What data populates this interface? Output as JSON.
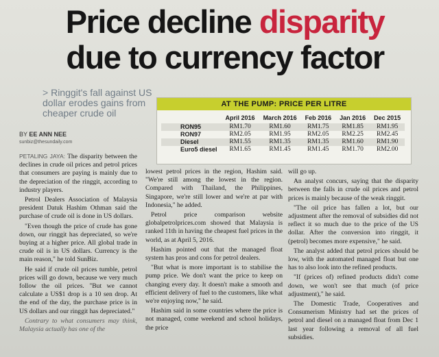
{
  "headline": {
    "part1": "Price decline ",
    "accent": "disparity",
    "part2": "due to currency factor"
  },
  "colors": {
    "accent": "#c8243d",
    "table_header": "#c7cf2e",
    "subdeck": "#6f7b86"
  },
  "subdeck": {
    "marker": ">",
    "text": "Ringgit's fall against US dollar erodes gains from cheaper crude oil"
  },
  "byline": {
    "prefix": "BY ",
    "name": "EE ANN NEE",
    "email": "sunbiz@thesundaily.com"
  },
  "table": {
    "title": "AT THE PUMP: PRICE PER LITRE",
    "columns": [
      "April 2016",
      "March 2016",
      "Feb 2016",
      "Jan 2016",
      "Dec 2015"
    ],
    "rows": [
      {
        "fuel": "RON95",
        "values": [
          "RM1.70",
          "RM1.60",
          "RM1.75",
          "RM1.85",
          "RM1.95"
        ]
      },
      {
        "fuel": "RON97",
        "values": [
          "RM2.05",
          "RM1.95",
          "RM2.05",
          "RM2.25",
          "RM2.45"
        ]
      },
      {
        "fuel": "Diesel",
        "values": [
          "RM1.55",
          "RM1.35",
          "RM1.35",
          "RM1.60",
          "RM1.90"
        ]
      },
      {
        "fuel": "Euro5 diesel",
        "values": [
          "RM1.65",
          "RM1.45",
          "RM1.45",
          "RM1.70",
          "RM2.00"
        ]
      }
    ]
  },
  "article": {
    "col1": {
      "dateline": "PETALING JAYA:",
      "p1": " The disparity between the declines in crude oil prices and petrol prices that consumers are paying is mainly due to the depreciation of the ringgit, according to industry players.",
      "p2": "Petrol Dealers Association of Malaysia president Datuk Hashim Othman said the purchase of crude oil is done in US dollars.",
      "p3": "\"Even though the price of crude has gone down, our ringgit has depreciated, so we're buying at a higher price. All global trade in crude oil is in US dollars. Currency is the main reason,\" he told SunBiz.",
      "p4": "He said if crude oil prices tumble, petrol prices will go down, because we very much follow the oil prices. \"But we cannot calculate a US$1 drop is a 10 sen drop. At the end of the day, the purchase price is in US dollars and our ringgit has depreciated.\"",
      "p5": "Contrary to what consumers may think, Malaysia actually has one of the"
    },
    "col2": {
      "p1": "lowest petrol prices in the region, Hashim said. \"We're still among the lowest in the region. Compared with Thailand, the Philippines, Singapore, we're still lower and we're at par with Indonesia,\" he added.",
      "p2": "Petrol price comparison website globalpetrolprices.com showed that Malaysia is ranked 11th in having the cheapest fuel prices in the world, as at April 5, 2016.",
      "p3": "Hashim pointed out that the managed float system has pros and cons for petrol dealers.",
      "p4": "\"But what is more important is to stabilise the pump price. We don't want the price to keep on changing every day. It doesn't make a smooth and efficient delivery of fuel to the customers, like what we're enjoying now,\" he said.",
      "p5": "Hashim said in some countries where the price is not managed, come weekend and school holidays, the price"
    },
    "col3": {
      "p1": "will go up.",
      "p2": "An analyst concurs, saying that the disparity between the falls in crude oil prices and petrol prices is mainly because of the weak ringgit.",
      "p3": "\"The oil price has fallen a lot, but our adjustment after the removal of subsidies did not reflect it so much due to the price of the US dollar. After the conversion into ringgit, it (petrol) becomes more expensive,\" he said.",
      "p4": "The analyst added that petrol prices should be low, with the automated managed float but one has to also look into the refined products.",
      "p5": "\"If (prices of) refined products didn't come down, we won't see that much (of price adjustment),\" he said.",
      "p6": "The Domestic Trade, Cooperatives and Consumerism Ministry had set the prices of petrol and diesel on a managed float from Dec 1 last year following a removal of all fuel subsidies."
    }
  }
}
